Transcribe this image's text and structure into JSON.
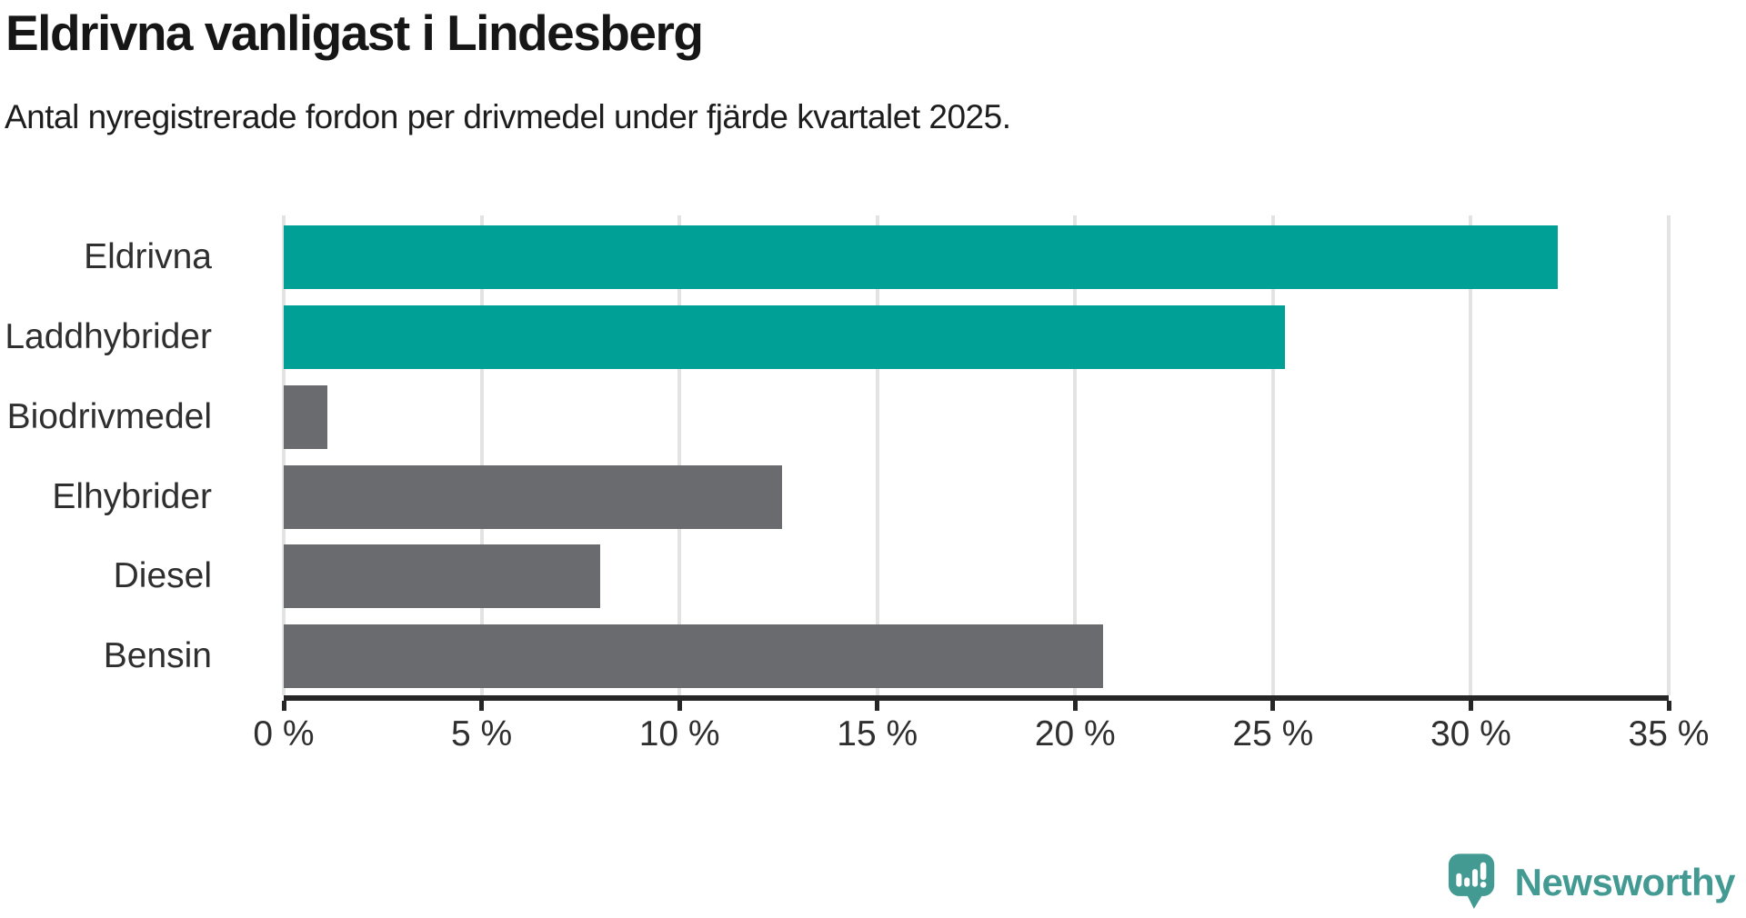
{
  "header": {
    "title": "Eldrivna vanligast i Lindesberg",
    "subtitle": "Antal nyregistrerade fordon per drivmedel under fjärde kvartalet 2025."
  },
  "chart_data": {
    "type": "bar",
    "orientation": "horizontal",
    "title": "Eldrivna vanligast i Lindesberg",
    "subtitle": "Antal nyregistrerade fordon per drivmedel under fjärde kvartalet 2025.",
    "categories": [
      "Eldrivna",
      "Laddhybrider",
      "Biodrivmedel",
      "Elhybrider",
      "Diesel",
      "Bensin"
    ],
    "values": [
      32.2,
      25.3,
      1.1,
      12.6,
      8.0,
      20.7
    ],
    "unit": "%",
    "bar_colors": [
      "#00A096",
      "#00A096",
      "#6A6B6E",
      "#6A6B6E",
      "#6A6B6E",
      "#6A6B6E"
    ],
    "xlabel": "",
    "ylabel": "",
    "xlim": [
      0,
      35
    ],
    "x_ticks": [
      0,
      5,
      10,
      15,
      20,
      25,
      30,
      35
    ],
    "x_tick_labels": [
      "0 %",
      "5 %",
      "10 %",
      "15 %",
      "20 %",
      "25 %",
      "30 %",
      "35 %"
    ],
    "grid": "vertical-only",
    "legend": "none"
  },
  "colors": {
    "highlight": "#00A096",
    "neutral": "#6A6B6E",
    "axis": "#262626",
    "gridline": "#E3E3E3",
    "title_text": "#161616",
    "label_text": "#2F2F2F",
    "brand_teal": "#429A93"
  },
  "footer": {
    "brand": "Newsworthy"
  }
}
